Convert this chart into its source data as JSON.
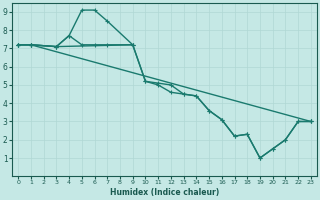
{
  "xlabel": "Humidex (Indice chaleur)",
  "bg_color": "#c5e8e5",
  "grid_color": "#b0d8d4",
  "line_color": "#1a7a6e",
  "xlim": [
    -0.5,
    23.5
  ],
  "ylim": [
    0,
    9.5
  ],
  "xticks": [
    0,
    1,
    2,
    3,
    4,
    5,
    6,
    7,
    8,
    9,
    10,
    11,
    12,
    13,
    14,
    15,
    16,
    17,
    18,
    19,
    20,
    21,
    22,
    23
  ],
  "yticks": [
    1,
    2,
    3,
    4,
    5,
    6,
    7,
    8,
    9
  ],
  "lines": [
    {
      "x": [
        0,
        1,
        3,
        4,
        5,
        6,
        7,
        9
      ],
      "y": [
        7.2,
        7.2,
        7.1,
        7.7,
        9.1,
        9.1,
        8.5,
        7.2
      ]
    },
    {
      "x": [
        0,
        1,
        3,
        4,
        5,
        6,
        7,
        9,
        10,
        11,
        12,
        13,
        14,
        15,
        16,
        17,
        18,
        19,
        20,
        21,
        22,
        23
      ],
      "y": [
        7.2,
        7.2,
        7.1,
        7.7,
        7.2,
        7.2,
        7.2,
        7.2,
        5.2,
        5.1,
        5.0,
        4.5,
        4.4,
        3.6,
        3.1,
        2.2,
        2.3,
        1.0,
        1.5,
        2.0,
        3.0,
        3.0
      ]
    },
    {
      "x": [
        0,
        1,
        3,
        9,
        10,
        11,
        12,
        13,
        14,
        15,
        16,
        17,
        18,
        19,
        20,
        21,
        22,
        23
      ],
      "y": [
        7.2,
        7.2,
        7.1,
        7.2,
        5.2,
        5.0,
        4.6,
        4.5,
        4.4,
        3.6,
        3.1,
        2.2,
        2.3,
        1.0,
        1.5,
        2.0,
        3.0,
        3.0
      ]
    },
    {
      "x": [
        0,
        1,
        23
      ],
      "y": [
        7.2,
        7.2,
        3.0
      ]
    }
  ]
}
